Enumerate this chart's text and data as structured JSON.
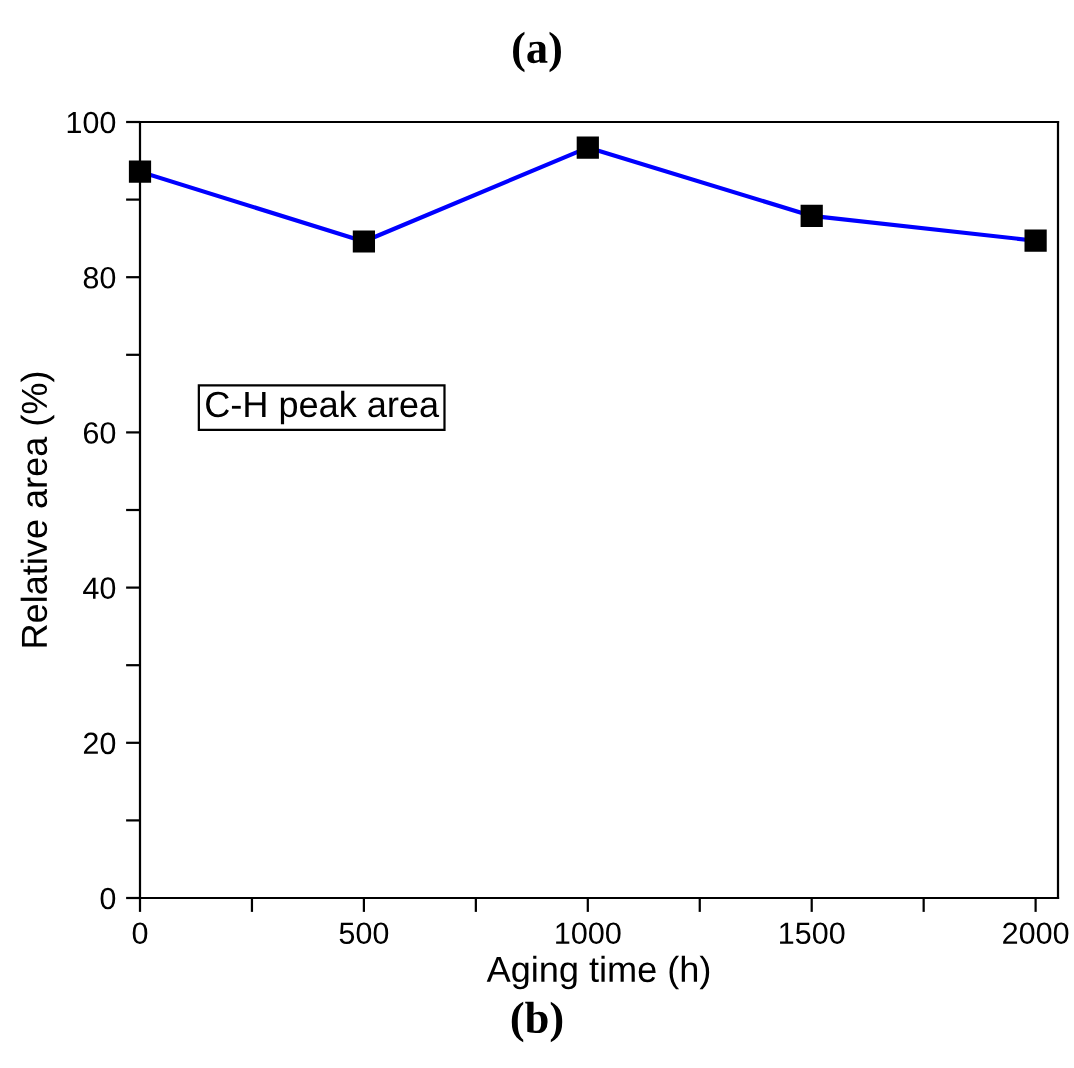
{
  "chart_data": {
    "type": "line",
    "xlabel": "Aging time (h)",
    "ylabel": "Relative area (%)",
    "x": [
      0,
      500,
      1000,
      1500,
      2000
    ],
    "series": [
      {
        "color": "#0000ff",
        "values": [
          93.6,
          84.6,
          96.7,
          87.9,
          84.7
        ]
      }
    ],
    "marker": "square",
    "line_style": "solid",
    "grid": false,
    "legend": false,
    "xlim": [
      0,
      2050
    ],
    "ylim": [
      0,
      100
    ],
    "xticks": [
      0,
      {
        "value": 250,
        "label": null
      },
      500,
      {
        "value": 750,
        "label": null
      },
      1000,
      {
        "value": 1250,
        "label": null
      },
      1500,
      {
        "value": 1750,
        "label": null
      },
      2000
    ],
    "yticks": [
      0,
      {
        "value": 10,
        "label": null
      },
      20,
      {
        "value": 30,
        "label": null
      },
      40,
      {
        "value": 50,
        "label": null
      },
      60,
      {
        "value": 70,
        "label": null
      },
      80,
      {
        "value": 90,
        "label": null
      },
      100
    ],
    "annotations": [
      {
        "text": "C-H peak area"
      },
      "(a)",
      "(b)"
    ]
  }
}
